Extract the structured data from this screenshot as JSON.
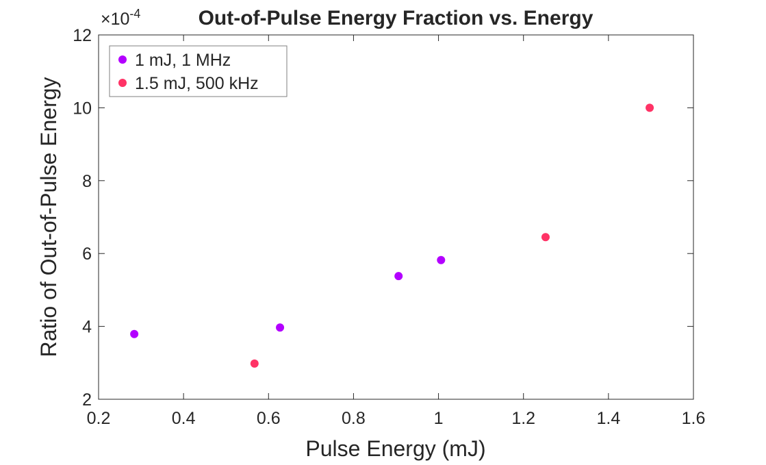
{
  "chart_data": {
    "type": "scatter",
    "title": "Out-of-Pulse Energy Fraction vs. Energy",
    "xlabel": "Pulse Energy (mJ)",
    "ylabel": "Ratio of Out-of-Pulse Energy",
    "xlim": [
      0.2,
      1.6
    ],
    "ylim": [
      2,
      12
    ],
    "y_exponent_label": "×10",
    "y_exponent": "-4",
    "xticks": [
      "0.2",
      "0.4",
      "0.6",
      "0.8",
      "1",
      "1.2",
      "1.4",
      "1.6"
    ],
    "xtick_values": [
      0.2,
      0.4,
      0.6,
      0.8,
      1,
      1.2,
      1.4,
      1.6
    ],
    "yticks": [
      "2",
      "4",
      "6",
      "8",
      "10",
      "12"
    ],
    "ytick_values": [
      2,
      4,
      6,
      8,
      10,
      12
    ],
    "grid": false,
    "legend_placement": "top-left",
    "series": [
      {
        "name": "1 mJ, 1 MHz",
        "color": "#b300ff",
        "x": [
          0.284,
          0.627,
          0.906,
          1.006
        ],
        "y": [
          3.79,
          3.97,
          5.38,
          5.82
        ]
      },
      {
        "name": "1.5 mJ, 500 kHz",
        "color": "#ff3366",
        "x": [
          0.567,
          1.252,
          1.497
        ],
        "y": [
          2.98,
          6.45,
          10.0
        ]
      }
    ]
  }
}
